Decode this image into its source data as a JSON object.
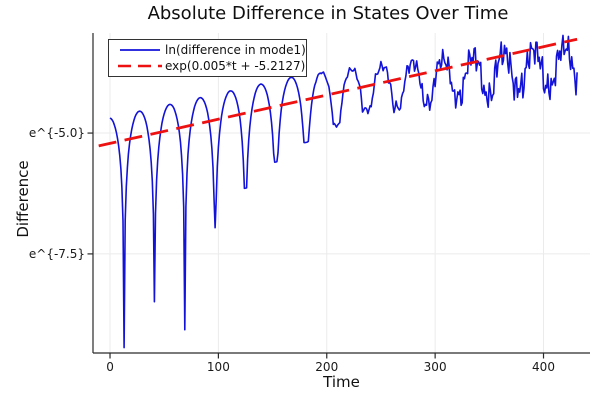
{
  "chart_data": {
    "type": "line",
    "title": "Absolute Difference in States Over Time",
    "xlabel": "Time",
    "ylabel": "Difference",
    "grid": true,
    "legend_position": "top-left",
    "xlim": [
      -15.7,
      442.9
    ],
    "ylim": [
      -9.55,
      -2.93
    ],
    "x_ticks": [
      {
        "label": "0",
        "value": 0
      },
      {
        "label": "100",
        "value": 100
      },
      {
        "label": "200",
        "value": 200
      },
      {
        "label": "300",
        "value": 300
      },
      {
        "label": "400",
        "value": 400
      }
    ],
    "y_ticks": [
      {
        "label": "e^{-5.0}",
        "value": -5.0
      },
      {
        "label": "e^{-7.5}",
        "value": -7.5
      }
    ],
    "colors": {
      "grid": "#ebebeb",
      "spine": "#2a2a2a",
      "tick_label": "#1a1a1a"
    },
    "series": [
      {
        "name": "ln(difference in mode1)",
        "color": "#1212d9",
        "style": "solid",
        "width": 1.6,
        "model": {
          "type": "log-abs-oscillation",
          "trend_slope": 0.005,
          "trend_intercept": -5.2127,
          "peak_offset": 0.53,
          "peak_offset_decay_start": 180,
          "peak_offset_decay_rate": 0.0026,
          "t_start": 0,
          "t_end": 431,
          "dip_t0": 13,
          "dip_period": 28,
          "dip_depths": [
            4.82,
            4.01,
            4.73,
            2.76,
            2.08,
            1.68,
            1.41,
            1.12,
            0.87,
            0.88,
            0.85,
            0.8,
            0.85,
            0.75,
            0.8,
            0.7
          ],
          "noise_start": 175,
          "noise_ramp": 170,
          "noise_max": 0.28
        }
      },
      {
        "name": "exp(0.005*t + -5.2127)",
        "color": "#ee1111",
        "style": "dashed",
        "width": 2.8,
        "dash": "18 8.5",
        "model": {
          "type": "exp-trend",
          "slope": 0.005,
          "intercept": -5.2127,
          "t_start": -10.4,
          "t_end": 431
        }
      }
    ]
  }
}
